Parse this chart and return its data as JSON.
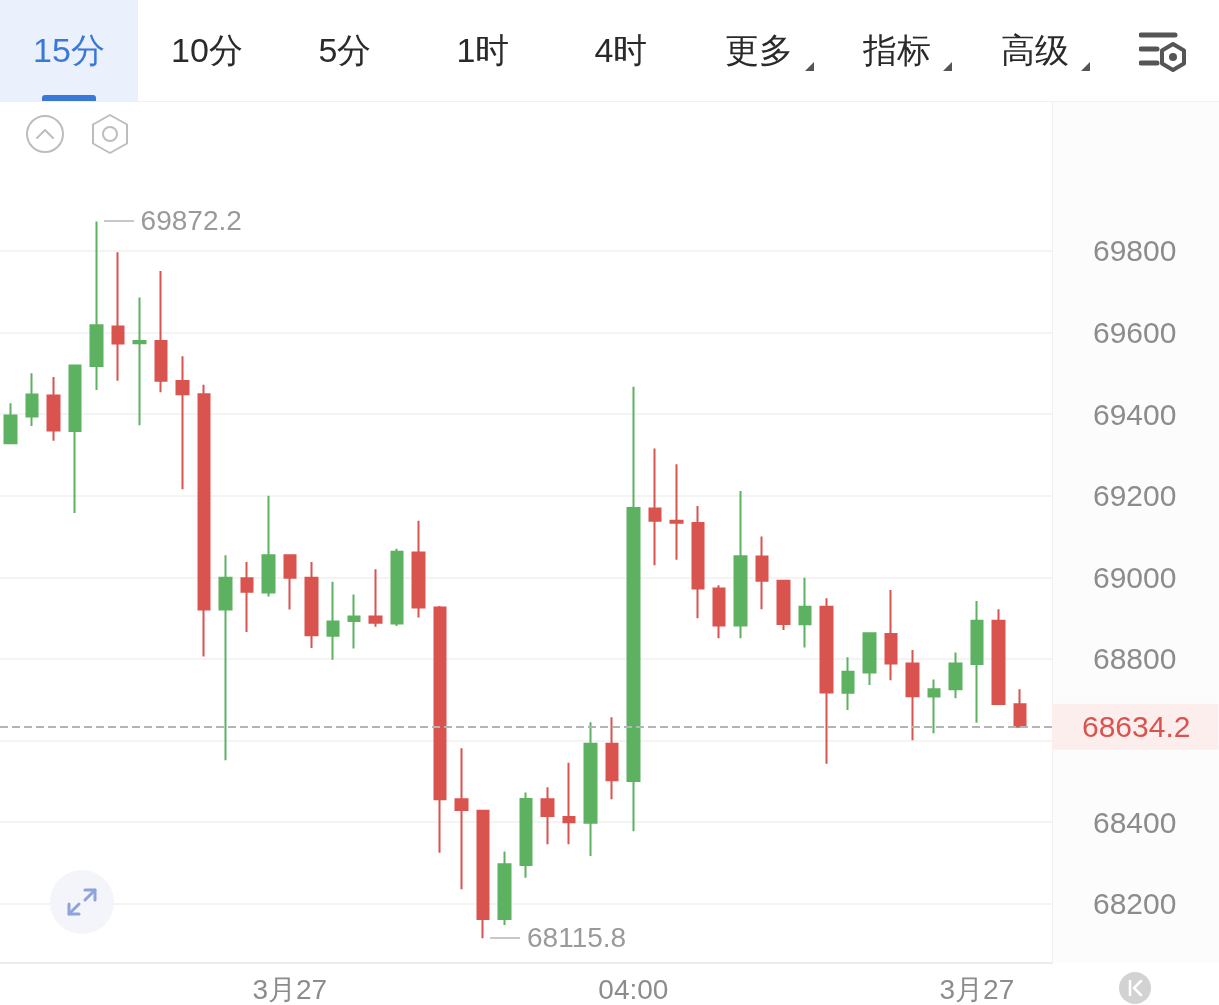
{
  "chart_data": {
    "type": "candlestick",
    "categories": [
      null,
      null,
      null,
      null,
      null,
      null,
      null,
      null,
      null,
      null,
      null,
      null,
      null,
      "3月27",
      null,
      null,
      null,
      null,
      null,
      null,
      null,
      null,
      null,
      null,
      null,
      null,
      null,
      null,
      null,
      "04:00",
      null,
      null,
      null,
      null,
      null,
      null,
      null,
      null,
      null,
      null,
      null,
      null,
      null,
      null,
      null,
      "3月27",
      null,
      null
    ],
    "ohlc": [
      [
        69329,
        69427,
        69329,
        69397
      ],
      [
        69394,
        69500,
        69371,
        69448
      ],
      [
        69446,
        69491,
        69335,
        69360
      ],
      [
        69359,
        69519,
        69158,
        69519
      ],
      [
        69518,
        69872.2,
        69459,
        69618
      ],
      [
        69615,
        69797,
        69482,
        69573
      ],
      [
        69574,
        69686,
        69373,
        69579
      ],
      [
        69579,
        69751,
        69454,
        69482
      ],
      [
        69481,
        69542,
        69216,
        69449
      ],
      [
        69449,
        69472,
        68806,
        68921
      ],
      [
        68921,
        69054,
        68552,
        68999
      ],
      [
        68998,
        69038,
        68866,
        68965
      ],
      [
        68963,
        69200,
        68953,
        69054
      ],
      [
        69054,
        69054,
        68921,
        68999
      ],
      [
        68999,
        69038,
        68827,
        68858
      ],
      [
        68857,
        68989,
        68798,
        68892
      ],
      [
        68893,
        68958,
        68826,
        68904
      ],
      [
        68904,
        69020,
        68879,
        68889
      ],
      [
        68887,
        69070,
        68881,
        69063
      ],
      [
        69061,
        69139,
        68902,
        68926
      ],
      [
        68926,
        68930,
        68325,
        68456
      ],
      [
        68456,
        68581,
        68236,
        68430
      ],
      [
        68428,
        68428,
        68115.8,
        68163
      ],
      [
        68163,
        68328,
        68148,
        68297
      ],
      [
        68295,
        68473,
        68264,
        68457
      ],
      [
        68456,
        68486,
        68346,
        68415
      ],
      [
        68413,
        68546,
        68346,
        68400
      ],
      [
        68399,
        68645,
        68317,
        68592
      ],
      [
        68592,
        68657,
        68456,
        68503
      ],
      [
        68501,
        69467,
        68378,
        69170
      ],
      [
        69169,
        69316,
        69030,
        69139
      ],
      [
        69139,
        69277,
        69043,
        69134
      ],
      [
        69133,
        69175,
        68900,
        68973
      ],
      [
        68973,
        68981,
        68851,
        68882
      ],
      [
        68882,
        69212,
        68851,
        69052
      ],
      [
        69051,
        69100,
        68922,
        68992
      ],
      [
        68992,
        68994,
        68871,
        68886
      ],
      [
        68885,
        68999,
        68828,
        68928
      ],
      [
        68928,
        68949,
        68543,
        68718
      ],
      [
        68717,
        68804,
        68675,
        68769
      ],
      [
        68767,
        68863,
        68736,
        68863
      ],
      [
        68861,
        68969,
        68748,
        68789
      ],
      [
        68789,
        68822,
        68601,
        68709
      ],
      [
        68708,
        68750,
        68618,
        68726
      ],
      [
        68726,
        68816,
        68704,
        68789
      ],
      [
        68788,
        68942,
        68644,
        68894
      ],
      [
        68894,
        68922,
        68690,
        68690
      ],
      [
        68689,
        68726,
        68634.2,
        68634.2
      ]
    ],
    "colors": [
      "#5cb260",
      "#5cb260",
      "#d9534f",
      "#5cb260",
      "#5cb260",
      "#d9534f",
      "#5cb260",
      "#d9534f",
      "#d9534f",
      "#d9534f",
      "#5cb260",
      "#d9534f",
      "#5cb260",
      "#d9534f",
      "#d9534f",
      "#5cb260",
      "#5cb260",
      "#d9534f",
      "#5cb260",
      "#d9534f",
      "#d9534f",
      "#d9534f",
      "#d9534f",
      "#5cb260",
      "#5cb260",
      "#d9534f",
      "#d9534f",
      "#5cb260",
      "#d9534f",
      "#5cb260",
      "#d9534f",
      "#d9534f",
      "#d9534f",
      "#d9534f",
      "#5cb260",
      "#d9534f",
      "#d9534f",
      "#5cb260",
      "#d9534f",
      "#5cb260",
      "#5cb260",
      "#d9534f",
      "#d9534f",
      "#5cb260",
      "#5cb260",
      "#5cb260",
      "#d9534f",
      "#d9534f"
    ],
    "ylim": [
      68055,
      70165
    ],
    "yticks": [
      68200,
      68400,
      {
        "value": 68600,
        "label": null
      },
      68800,
      69000,
      69200,
      69400,
      69600,
      69800
    ],
    "grid": "y",
    "ref_lines": [
      {
        "axis": "y",
        "value": 68634.2,
        "label": "68634.2",
        "color": "#b4b4b4",
        "line_style": "dashed"
      }
    ],
    "annotations": [
      "15分",
      "10分",
      "5分",
      "1时",
      "4时",
      "更多",
      "指标",
      "高级",
      "69872.2",
      "68115.8"
    ]
  }
}
